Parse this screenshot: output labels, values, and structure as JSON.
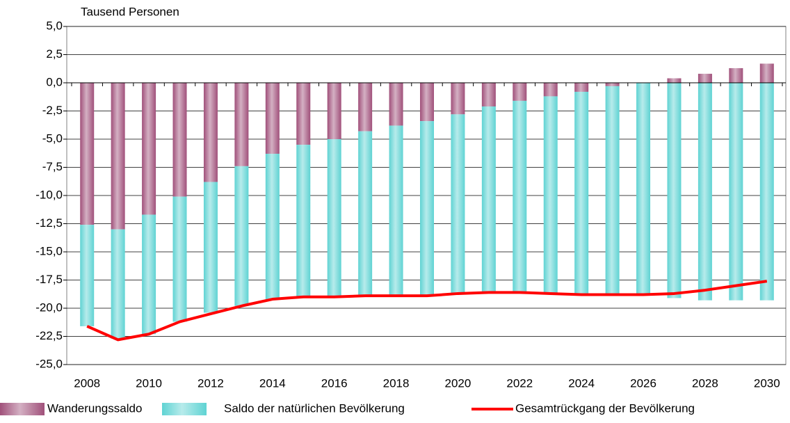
{
  "chart_data": {
    "type": "bar",
    "stacked": true,
    "y_label": "Tausend Personen",
    "categories": [
      "2008",
      null,
      "2010",
      null,
      "2012",
      null,
      "2014",
      null,
      "2016",
      null,
      "2018",
      null,
      "2020",
      null,
      "2022",
      null,
      "2024",
      null,
      "2026",
      null,
      "2028",
      null,
      "2030"
    ],
    "series": [
      {
        "name": "Wanderungssaldo",
        "type": "bar",
        "color": "#a0507a",
        "values": [
          -12.6,
          -13.0,
          -11.7,
          -10.1,
          -8.8,
          -7.4,
          -6.3,
          -5.5,
          -5.0,
          -4.3,
          -3.8,
          -3.4,
          -2.8,
          -2.1,
          -1.6,
          -1.2,
          -0.8,
          -0.3,
          0.0,
          0.4,
          0.8,
          1.3,
          1.7
        ]
      },
      {
        "name": "Saldo der natürlichen Bevölkerung",
        "type": "bar",
        "color": "#5fd3d3",
        "values": [
          -9.0,
          -9.7,
          -10.6,
          -11.1,
          -11.6,
          -12.4,
          -12.9,
          -13.5,
          -14.0,
          -14.6,
          -15.1,
          -15.5,
          -15.9,
          -16.5,
          -17.0,
          -17.5,
          -18.0,
          -18.5,
          -18.8,
          -19.1,
          -19.3,
          -19.3,
          -19.3
        ]
      },
      {
        "name": "Gesamtrückgang der Bevölkerung",
        "type": "line",
        "color": "#ff0000",
        "values": [
          -21.6,
          -22.8,
          -22.3,
          -21.2,
          -20.5,
          -19.8,
          -19.2,
          -19.0,
          -19.0,
          -18.9,
          -18.9,
          -18.9,
          -18.7,
          -18.6,
          -18.6,
          -18.7,
          -18.8,
          -18.8,
          -18.8,
          -18.7,
          -18.4,
          -18.0,
          -17.6
        ]
      }
    ],
    "ylim": [
      -25,
      5
    ],
    "yticks": [
      {
        "value": 5,
        "label": "5,0"
      },
      {
        "value": 2.5,
        "label": "2,5"
      },
      {
        "value": 0,
        "label": "0,0"
      },
      {
        "value": -2.5,
        "label": "-2,5"
      },
      {
        "value": -5,
        "label": "-5,0"
      },
      {
        "value": -7.5,
        "label": "-7,5"
      },
      {
        "value": -10,
        "label": "-10,0"
      },
      {
        "value": -12.5,
        "label": "-12,5"
      },
      {
        "value": -15,
        "label": "-15,0"
      },
      {
        "value": -17.5,
        "label": "-17,5"
      },
      {
        "value": -20,
        "label": "-20,0"
      },
      {
        "value": -22.5,
        "label": "-22,5"
      },
      {
        "value": -25,
        "label": "-25,0"
      }
    ],
    "grid": true,
    "legend": "bottom"
  }
}
